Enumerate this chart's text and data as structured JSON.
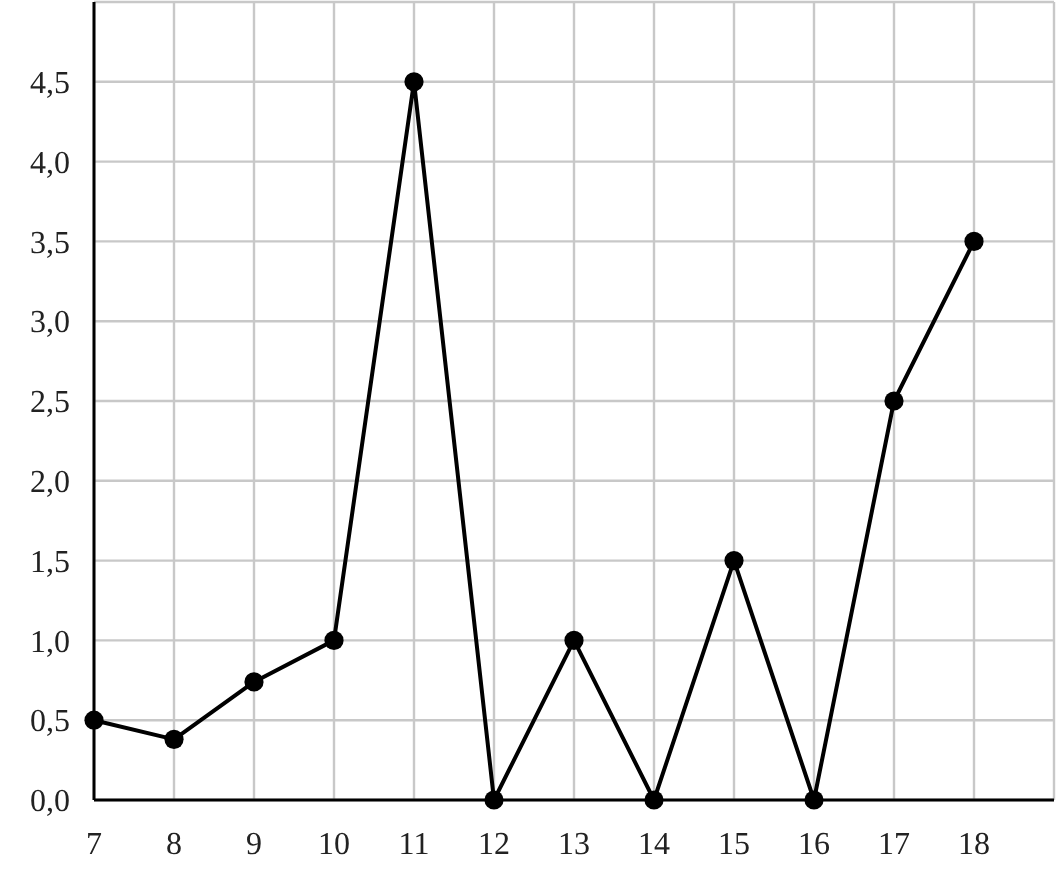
{
  "chart_data": {
    "type": "line",
    "x": [
      7,
      8,
      9,
      10,
      11,
      12,
      13,
      14,
      15,
      16,
      17,
      18
    ],
    "series": [
      {
        "color": "#000000",
        "values": [
          0.5,
          0.38,
          0.74,
          1.0,
          4.5,
          0,
          1.0,
          0,
          1.5,
          0,
          2.5,
          3.5
        ]
      }
    ],
    "xlim": [
      7,
      19
    ],
    "xticks": [
      7,
      8,
      9,
      10,
      11,
      12,
      13,
      14,
      15,
      16,
      17,
      18,
      {
        "value": 19,
        "label": null
      }
    ],
    "ylim": [
      0,
      5
    ],
    "yticks": [
      {
        "value": 0,
        "label": "0,0"
      },
      {
        "value": 0.5,
        "label": "0,5"
      },
      {
        "value": 1,
        "label": "1,0"
      },
      {
        "value": 1.5,
        "label": "1,5"
      },
      {
        "value": 2,
        "label": "2,0"
      },
      {
        "value": 2.5,
        "label": "2,5"
      },
      {
        "value": 3,
        "label": "3,0"
      },
      {
        "value": 3.5,
        "label": "3,5"
      },
      {
        "value": 4,
        "label": "4,0"
      },
      {
        "value": 4.5,
        "label": "4,5"
      },
      {
        "value": 5,
        "label": null
      }
    ],
    "grid": true,
    "marker": "circle",
    "line_style": "solid"
  }
}
